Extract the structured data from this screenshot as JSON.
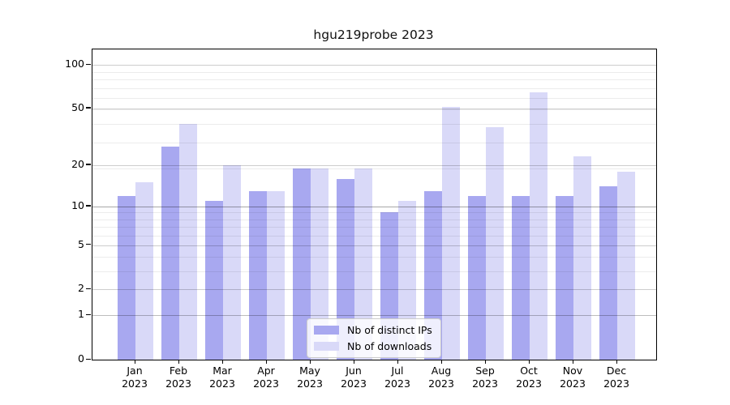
{
  "title": "hgu219probe 2023",
  "legend": {
    "ips_label": "Nb of distinct IPs",
    "downloads_label": "Nb of downloads"
  },
  "y_axis": {
    "tick_labels": [
      "0",
      "1",
      "2",
      "5",
      "10",
      "20",
      "50",
      "100"
    ]
  },
  "colors": {
    "ips_bar": "#a8a8f0",
    "downloads_bar": "#d9d9f8",
    "axis": "#000000",
    "grid_major": "#c9c9c9",
    "grid_strong": "#a8a8a8",
    "grid_minor": "#ebebeb",
    "legend_border": "#cccccc"
  },
  "chart_data": {
    "type": "bar",
    "title": "hgu219probe 2023",
    "categories": [
      "Jan 2023",
      "Feb 2023",
      "Mar 2023",
      "Apr 2023",
      "May 2023",
      "Jun 2023",
      "Jul 2023",
      "Aug 2023",
      "Sep 2023",
      "Oct 2023",
      "Nov 2023",
      "Dec 2023"
    ],
    "series": [
      {
        "name": "Nb of distinct IPs",
        "color": "#a8a8f0",
        "values": [
          12,
          27,
          11,
          13,
          19,
          16,
          9,
          13,
          12,
          12,
          12,
          14
        ]
      },
      {
        "name": "Nb of downloads",
        "color": "#d9d9f8",
        "values": [
          15,
          39,
          20,
          13,
          19,
          19,
          11,
          51,
          37,
          65,
          23,
          18
        ]
      }
    ],
    "xlabel": "",
    "ylabel": "",
    "y_scale": "log1p",
    "y_ticks": [
      0,
      1,
      2,
      5,
      10,
      20,
      50,
      100
    ],
    "y_grid_minor": [
      3,
      4,
      6,
      7,
      8,
      9,
      19,
      29,
      39,
      49,
      59,
      69,
      79,
      89
    ],
    "ylim": [
      0,
      128
    ],
    "grid": true,
    "legend_position": "lower center"
  }
}
